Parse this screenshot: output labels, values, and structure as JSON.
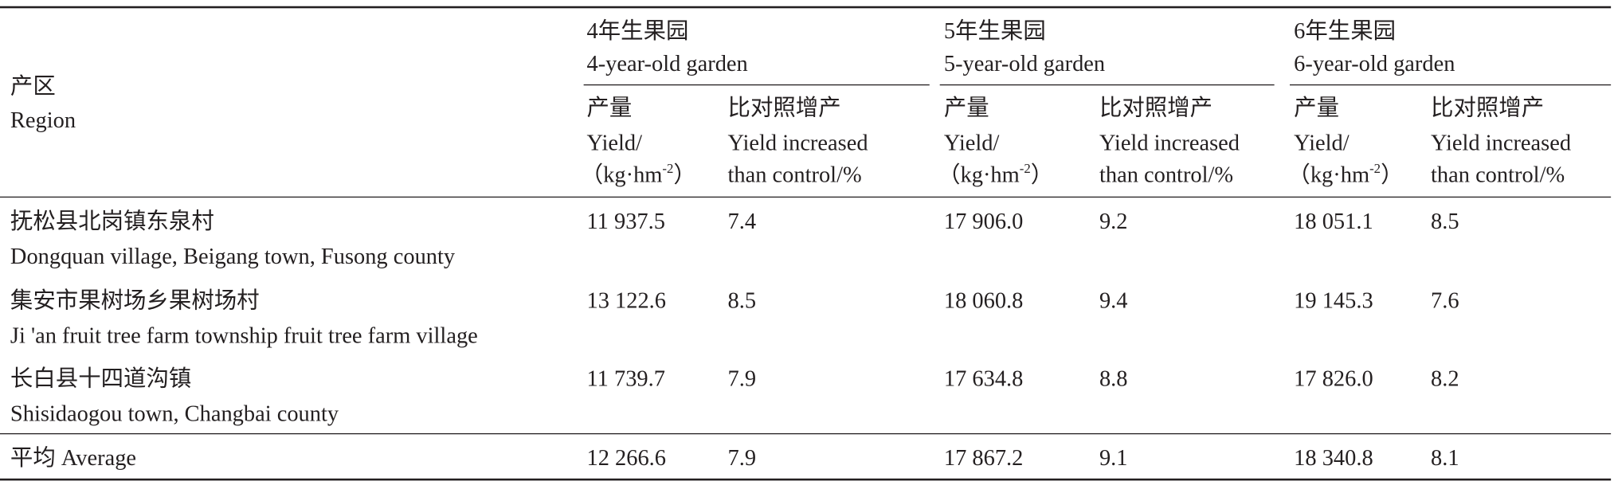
{
  "header": {
    "region": {
      "cn": "产区",
      "en": "Region"
    },
    "groups": [
      {
        "cn": "4年生果园",
        "en": "4-year-old garden"
      },
      {
        "cn": "5年生果园",
        "en": "5-year-old garden"
      },
      {
        "cn": "6年生果园",
        "en": "6-year-old garden"
      }
    ],
    "yield": {
      "cn": "产量",
      "en": "Yield/",
      "unit": {
        "open": "（kg·hm",
        "sup": "-2",
        "close": "）"
      }
    },
    "increase": {
      "cn": "比对照增产",
      "en": "Yield increased",
      "en2": "than control/%"
    }
  },
  "rows": [
    {
      "cn": "抚松县北岗镇东泉村",
      "en": "Dongquan village, Beigang town, Fusong county",
      "values": [
        "11 937.5",
        "7.4",
        "17 906.0",
        "9.2",
        "18 051.1",
        "8.5"
      ]
    },
    {
      "cn": "集安市果树场乡果树场村",
      "en": "Ji 'an fruit tree farm township fruit tree farm village",
      "values": [
        "13 122.6",
        "8.5",
        "18 060.8",
        "9.4",
        "19 145.3",
        "7.6"
      ]
    },
    {
      "cn": "长白县十四道沟镇",
      "en": "Shisidaogou town, Changbai county",
      "values": [
        "11 739.7",
        "7.9",
        "17 634.8",
        "8.8",
        "17 826.0",
        "8.2"
      ]
    }
  ],
  "average": {
    "label": "平均 Average",
    "values": [
      "12 266.6",
      "7.9",
      "17 867.2",
      "9.1",
      "18 340.8",
      "8.1"
    ]
  }
}
